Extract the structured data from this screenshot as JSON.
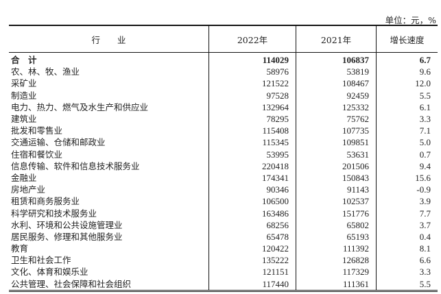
{
  "unit": "单位：元，%",
  "headers": [
    "行　　业",
    "2022年",
    "2021年",
    "增长速度"
  ],
  "rows": [
    [
      "合　计",
      "114029",
      "106837",
      "6.7"
    ],
    [
      "农、林、牧、渔业",
      "58976",
      "53819",
      "9.6"
    ],
    [
      "采矿业",
      "121522",
      "108467",
      "12.0"
    ],
    [
      "制造业",
      "97528",
      "92459",
      "5.5"
    ],
    [
      "电力、热力、燃气及水生产和供应业",
      "132964",
      "125332",
      "6.1"
    ],
    [
      "建筑业",
      "78295",
      "75762",
      "3.3"
    ],
    [
      "批发和零售业",
      "115408",
      "107735",
      "7.1"
    ],
    [
      "交通运输、仓储和邮政业",
      "115345",
      "109851",
      "5.0"
    ],
    [
      "住宿和餐饮业",
      "53995",
      "53631",
      "0.7"
    ],
    [
      "信息传输、软件和信息技术服务业",
      "220418",
      "201506",
      "9.4"
    ],
    [
      "金融业",
      "174341",
      "150843",
      "15.6"
    ],
    [
      "房地产业",
      "90346",
      "91143",
      "-0.9"
    ],
    [
      "租赁和商务服务业",
      "106500",
      "102537",
      "3.9"
    ],
    [
      "科学研究和技术服务业",
      "163486",
      "151776",
      "7.7"
    ],
    [
      "水利、环境和公共设施管理业",
      "68256",
      "65802",
      "3.7"
    ],
    [
      "居民服务、修理和其他服务业",
      "65478",
      "65193",
      "0.4"
    ],
    [
      "教育",
      "120422",
      "111392",
      "8.1"
    ],
    [
      "卫生和社会工作",
      "135222",
      "126828",
      "6.6"
    ],
    [
      "文化、体育和娱乐业",
      "121151",
      "117329",
      "3.3"
    ],
    [
      "公共管理、社会保障和社会组织",
      "117440",
      "111361",
      "5.5"
    ]
  ]
}
